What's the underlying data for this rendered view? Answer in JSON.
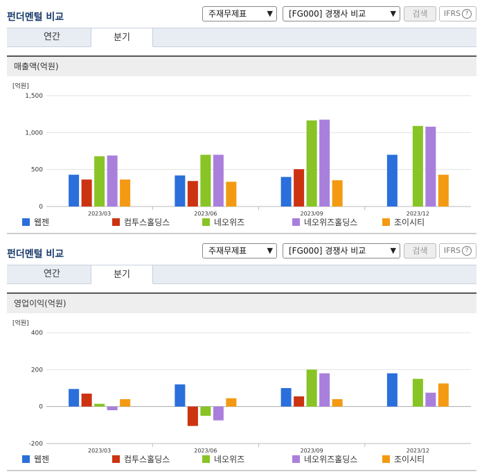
{
  "sections": [
    {
      "title": "펀더멘털 비교",
      "select1": "주재무제표",
      "select2": "[FG000] 경쟁사 비교",
      "search_label": "검색",
      "ifrs_label": "IFRS",
      "tabs": [
        "연간",
        "분기"
      ],
      "active_tab": "분기",
      "panel_title": "매출액(억원)"
    },
    {
      "title": "펀더멘털 비교",
      "select1": "주재무제표",
      "select2": "[FG000] 경쟁사 비교",
      "search_label": "검색",
      "ifrs_label": "IFRS",
      "tabs": [
        "연간",
        "분기"
      ],
      "active_tab": "분기",
      "panel_title": "영업이익(억원)"
    }
  ],
  "chart_data": [
    {
      "type": "bar",
      "unit_label": "[억원]",
      "categories": [
        "2023/03",
        "2023/06",
        "2023/09",
        "2023/12"
      ],
      "ylim": [
        0,
        1500
      ],
      "yticks": [
        0,
        500,
        1000,
        1500
      ],
      "ytick_labels": [
        "0",
        "500",
        "1,000",
        "1,500"
      ],
      "series": [
        {
          "name": "웹젠",
          "color": "#2a6fdb",
          "values": [
            430,
            420,
            400,
            700
          ]
        },
        {
          "name": "컴투스홀딩스",
          "color": "#cc3311",
          "values": [
            365,
            345,
            505,
            null
          ]
        },
        {
          "name": "네오위즈",
          "color": "#88c425",
          "values": [
            680,
            700,
            1165,
            1090
          ]
        },
        {
          "name": "네오위즈홀딩스",
          "color": "#a97fdc",
          "values": [
            690,
            700,
            1175,
            1080
          ]
        },
        {
          "name": "조이시티",
          "color": "#f39a12",
          "values": [
            365,
            335,
            355,
            430
          ]
        }
      ],
      "legend_position": "bottom",
      "grid": true
    },
    {
      "type": "bar",
      "unit_label": "[억원]",
      "categories": [
        "2023/03",
        "2023/06",
        "2023/09",
        "2023/12"
      ],
      "ylim": [
        -200,
        400
      ],
      "yticks": [
        -200,
        0,
        200,
        400
      ],
      "ytick_labels": [
        "-200",
        "0",
        "200",
        "400"
      ],
      "series": [
        {
          "name": "웹젠",
          "color": "#2a6fdb",
          "values": [
            95,
            120,
            100,
            180
          ]
        },
        {
          "name": "컴투스홀딩스",
          "color": "#cc3311",
          "values": [
            70,
            -105,
            55,
            null
          ]
        },
        {
          "name": "네오위즈",
          "color": "#88c425",
          "values": [
            15,
            -50,
            200,
            150
          ]
        },
        {
          "name": "네오위즈홀딩스",
          "color": "#a97fdc",
          "values": [
            -20,
            -75,
            180,
            75
          ]
        },
        {
          "name": "조이시티",
          "color": "#f39a12",
          "values": [
            40,
            45,
            40,
            125
          ]
        }
      ],
      "legend_position": "bottom",
      "grid": true
    }
  ]
}
